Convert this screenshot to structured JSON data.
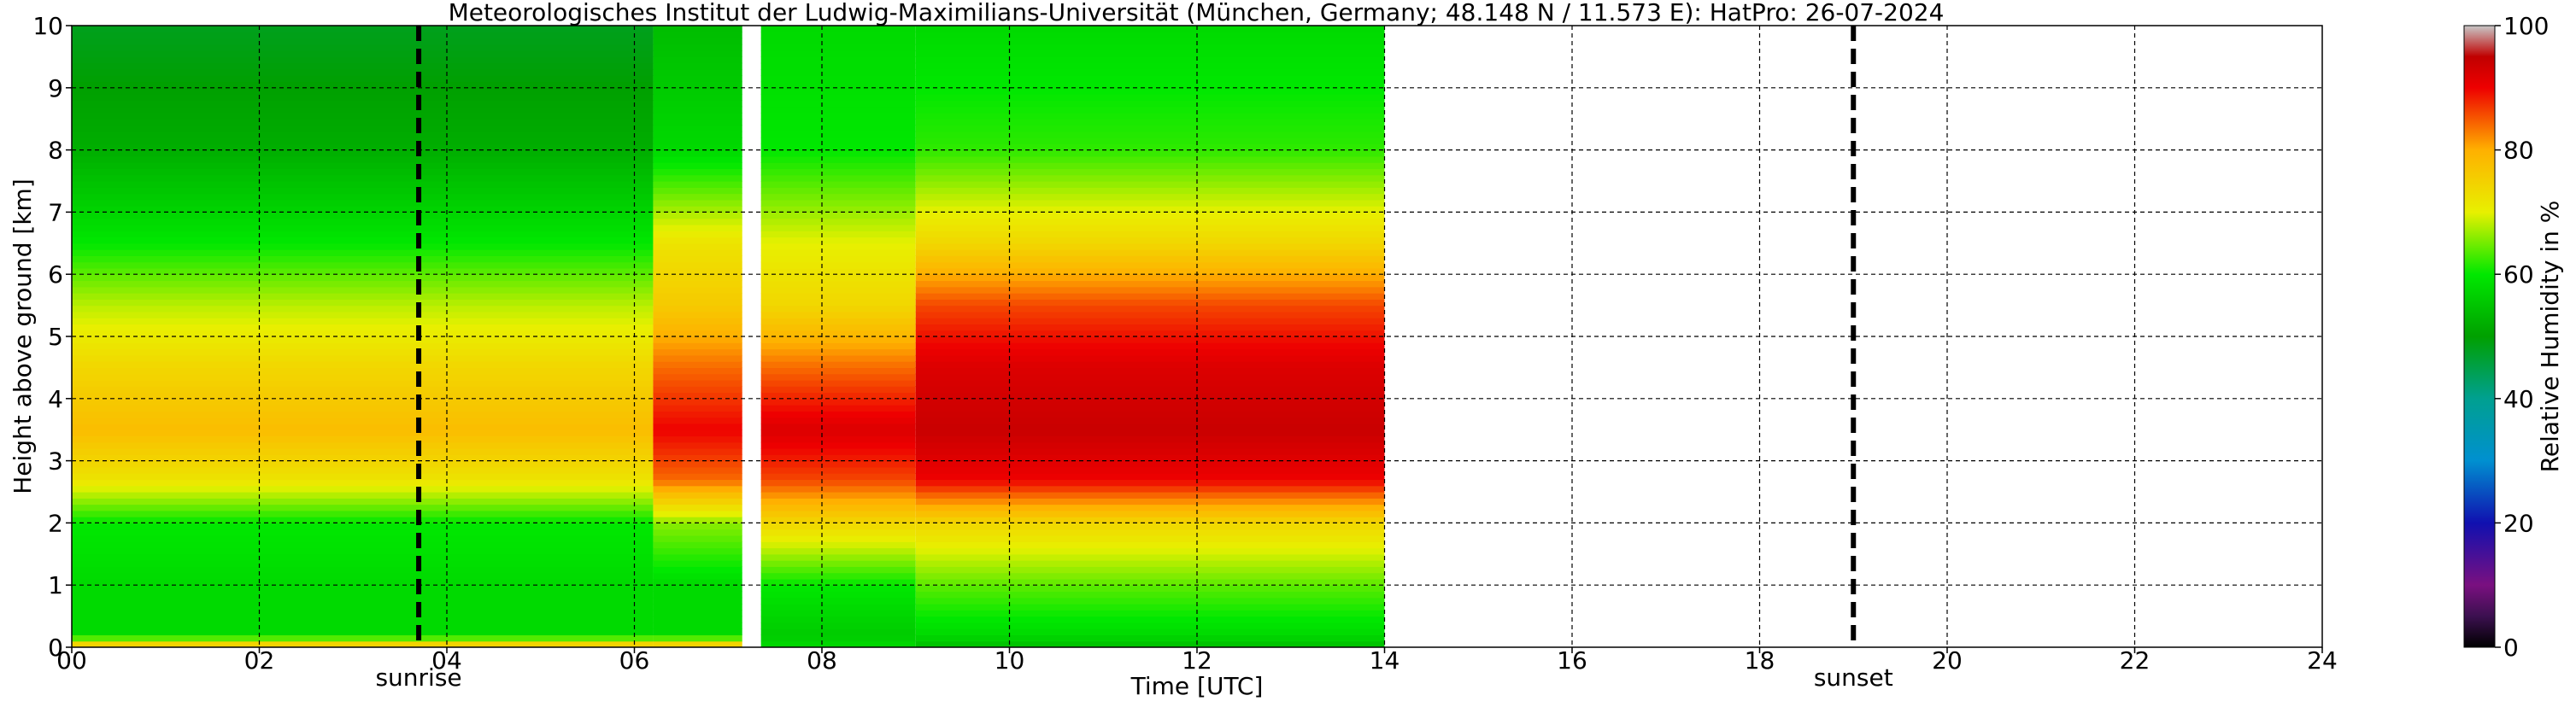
{
  "chart_data": {
    "type": "heatmap",
    "title": "Meteorologisches Institut der Ludwig-Maximilians-Universität (München, Germany; 48.148 N / 11.573 E):    HatPro: 26-07-2024",
    "xlabel": "Time [UTC]",
    "ylabel": "Height above ground [km]",
    "x_ticks": [
      "00",
      "02",
      "04",
      "06",
      "08",
      "10",
      "12",
      "14",
      "16",
      "18",
      "20",
      "22",
      "24"
    ],
    "y_ticks": [
      "0",
      "1",
      "2",
      "3",
      "4",
      "5",
      "6",
      "7",
      "8",
      "9",
      "10"
    ],
    "xlim": [
      0,
      24
    ],
    "ylim": [
      0,
      10
    ],
    "grid": true,
    "colorbar": {
      "label": "Relative Humidity in %",
      "ticks": [
        "0",
        "20",
        "40",
        "60",
        "80",
        "100"
      ],
      "range": [
        0,
        100
      ],
      "colors": [
        {
          "at": 0,
          "color": "#000000"
        },
        {
          "at": 5,
          "color": "#3c1050"
        },
        {
          "at": 10,
          "color": "#7a1080"
        },
        {
          "at": 20,
          "color": "#1010b0"
        },
        {
          "at": 30,
          "color": "#0090d0"
        },
        {
          "at": 40,
          "color": "#00a090"
        },
        {
          "at": 50,
          "color": "#00a000"
        },
        {
          "at": 60,
          "color": "#00e800"
        },
        {
          "at": 70,
          "color": "#e8f000"
        },
        {
          "at": 80,
          "color": "#ffb000"
        },
        {
          "at": 90,
          "color": "#ee0000"
        },
        {
          "at": 95,
          "color": "#c00000"
        },
        {
          "at": 100,
          "color": "#c8c8c8"
        }
      ]
    },
    "data_coverage_hours": [
      0,
      14
    ],
    "data_gap_hours": [
      7.15,
      7.35
    ],
    "annotations": [
      {
        "label": "sunrise",
        "x": 3.7
      },
      {
        "label": "sunset",
        "x": 19.0
      }
    ],
    "humidity_profiles": [
      {
        "time_range": [
          0,
          6.2
        ],
        "height_km": [
          0,
          0.2,
          1,
          2,
          2.7,
          3.5,
          4.5,
          5.5,
          6.5,
          8,
          10
        ],
        "rh": [
          80,
          58,
          58,
          60,
          72,
          78,
          74,
          68,
          60,
          52,
          48
        ]
      },
      {
        "time_range": [
          6.2,
          7.15
        ],
        "height_km": [
          0,
          0.2,
          1,
          2,
          2.7,
          3.5,
          4.5,
          5.5,
          6.5,
          8,
          10
        ],
        "rh": [
          80,
          58,
          58,
          66,
          84,
          90,
          84,
          76,
          72,
          58,
          54
        ]
      },
      {
        "time_range": [
          7.35,
          9
        ],
        "height_km": [
          0,
          0.2,
          1,
          2,
          2.7,
          3.5,
          4.5,
          5.5,
          6.5,
          8,
          10
        ],
        "rh": [
          58,
          56,
          60,
          74,
          86,
          92,
          84,
          74,
          70,
          60,
          58
        ]
      },
      {
        "time_range": [
          9,
          14
        ],
        "height_km": [
          0,
          0.2,
          1,
          2,
          2.7,
          3.5,
          4.5,
          5.5,
          6.5,
          8,
          10
        ],
        "rh": [
          54,
          58,
          64,
          74,
          90,
          94,
          92,
          86,
          74,
          62,
          58
        ]
      }
    ]
  }
}
